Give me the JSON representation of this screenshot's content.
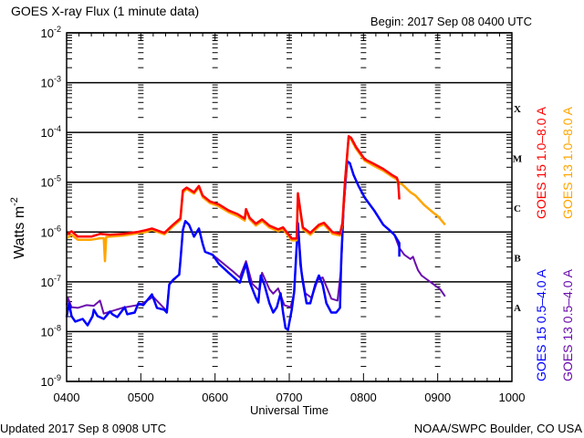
{
  "chart_data": {
    "type": "line",
    "title": "GOES X-ray Flux (1 minute data)",
    "subtitle": "Begin: 2017 Sep 08 0400 UTC",
    "xlabel": "Universal Time",
    "ylabel": "Watts m",
    "ylabel_exp": "-2",
    "y_scale": "log",
    "ylim": [
      1e-09,
      0.01
    ],
    "xlim": [
      "0400",
      "1000"
    ],
    "grid": "horizontal lines at each decade",
    "x_ticks": [
      "0400",
      "0500",
      "0600",
      "0700",
      "0800",
      "0900",
      "1000"
    ],
    "y_ticks": [
      {
        "base": "10",
        "exp": "-2"
      },
      {
        "base": "10",
        "exp": "-3"
      },
      {
        "base": "10",
        "exp": "-4"
      },
      {
        "base": "10",
        "exp": "-5"
      },
      {
        "base": "10",
        "exp": "-6"
      },
      {
        "base": "10",
        "exp": "-7"
      },
      {
        "base": "10",
        "exp": "-8"
      },
      {
        "base": "10",
        "exp": "-9"
      }
    ],
    "flare_classes": [
      "X",
      "M",
      "C",
      "B",
      "A"
    ],
    "legend_placement": "right, vertical",
    "series": [
      {
        "name": "GOES 13 0.5-4.0 A",
        "color": "#6a0dad",
        "points": [
          [
            "0400",
            3.4e-08
          ],
          [
            "0401",
            4.8e-08
          ],
          [
            "0404",
            3.1e-08
          ],
          [
            "0409",
            3e-08
          ],
          [
            "0416",
            3.4e-08
          ],
          [
            "0422",
            3.3e-08
          ],
          [
            "0427",
            4.2e-08
          ],
          [
            "0430",
            2.3e-08
          ],
          [
            "0445",
            3e-08
          ],
          [
            "0500",
            3.5e-08
          ],
          [
            "0510",
            5e-08
          ],
          [
            "0521",
            2.6e-08
          ],
          [
            "0523",
            9e-08
          ],
          [
            "0531",
            1.4e-07
          ],
          [
            "0534",
            1.09e-06
          ],
          [
            "0536",
            1.66e-06
          ],
          [
            "0539",
            1.4e-06
          ],
          [
            "0543",
            8.1e-07
          ],
          [
            "0547",
            1.18e-06
          ],
          [
            "0550",
            5.8e-07
          ],
          [
            "0552",
            4e-07
          ],
          [
            "0558",
            3.5e-07
          ],
          [
            "0614",
            1.66e-07
          ],
          [
            "0620",
            1.23e-07
          ],
          [
            "0625",
            2.6e-07
          ],
          [
            "0630",
            9.2e-08
          ],
          [
            "0636",
            6.6e-08
          ],
          [
            "0638",
            1.52e-07
          ],
          [
            "0644",
            7.1e-08
          ],
          [
            "0647",
            5.8e-08
          ],
          [
            "0651",
            7.4e-08
          ],
          [
            "0656",
            3.4e-08
          ],
          [
            "0701",
            3.1e-08
          ],
          [
            "0704",
            5.9e-08
          ],
          [
            "0707",
            1.52e-06
          ],
          [
            "0710",
            1.52e-07
          ],
          [
            "0713",
            5.9e-08
          ],
          [
            "0718",
            4.8e-08
          ],
          [
            "0723",
            1.09e-07
          ],
          [
            "0727",
            1.23e-07
          ],
          [
            "0730",
            8.1e-08
          ],
          [
            "0734",
            4.6e-08
          ],
          [
            "0739",
            4.2e-08
          ],
          [
            "0742",
            1.88e-07
          ],
          [
            "0744",
            3.26e-06
          ],
          [
            "0747",
            2.64e-05
          ],
          [
            "0749",
            2.42e-05
          ],
          [
            "0752",
            1.4e-05
          ],
          [
            "0756",
            8.4e-06
          ],
          [
            "0801",
            4.9e-06
          ],
          [
            "0809",
            2.64e-06
          ],
          [
            "0816",
            1.4e-06
          ],
          [
            "0821",
            1.09e-06
          ],
          [
            "0825",
            8.8e-07
          ],
          [
            "0829",
            4.8e-07
          ],
          [
            "0833",
            3.5e-07
          ],
          [
            "0838",
            2.87e-07
          ],
          [
            "0840",
            3.2e-07
          ],
          [
            "0842",
            2.32e-07
          ],
          [
            "0844",
            1.73e-07
          ],
          [
            "0847",
            1.34e-07
          ],
          [
            "0851",
            1.13e-07
          ],
          [
            "0857",
            8.8e-08
          ],
          [
            "0902",
            7.1e-08
          ],
          [
            "0906",
            5.1e-08
          ]
        ]
      },
      {
        "name": "GOES 15 0.5-4.0 A",
        "color": "#0000ff",
        "points": [
          [
            "0400",
            1.96e-08
          ],
          [
            "0402",
            3.7e-08
          ],
          [
            "0404",
            2.05e-08
          ],
          [
            "0407",
            1.59e-08
          ],
          [
            "0413",
            1.8e-08
          ],
          [
            "0417",
            1.34e-08
          ],
          [
            "0421",
            2.05e-08
          ],
          [
            "0422",
            2.75e-08
          ],
          [
            "0425",
            2.05e-08
          ],
          [
            "0430",
            1.8e-08
          ],
          [
            "0435",
            2.53e-08
          ],
          [
            "0437",
            2.23e-08
          ],
          [
            "0441",
            1.96e-08
          ],
          [
            "0447",
            3.1e-08
          ],
          [
            "0449",
            2.23e-08
          ],
          [
            "0455",
            2.42e-08
          ],
          [
            "0458",
            3.7e-08
          ],
          [
            "0502",
            3.4e-08
          ],
          [
            "0509",
            5.6e-08
          ],
          [
            "0513",
            3e-08
          ],
          [
            "0519",
            2.75e-08
          ],
          [
            "0521",
            2.42e-08
          ],
          [
            "0523",
            8.8e-08
          ],
          [
            "0526",
            1.09e-07
          ],
          [
            "0531",
            1.4e-07
          ],
          [
            "0532",
            2.6e-07
          ],
          [
            "0534",
            1.09e-06
          ],
          [
            "0536",
            1.66e-06
          ],
          [
            "0539",
            1.4e-06
          ],
          [
            "0543",
            8.1e-07
          ],
          [
            "0547",
            1.18e-06
          ],
          [
            "0550",
            5.8e-07
          ],
          [
            "0552",
            4e-07
          ],
          [
            "0558",
            3.5e-07
          ],
          [
            "0603",
            2.32e-07
          ],
          [
            "0611",
            1.52e-07
          ],
          [
            "0620",
            9.6e-08
          ],
          [
            "0625",
            2.32e-07
          ],
          [
            "0628",
            1e-07
          ],
          [
            "0633",
            4.8e-08
          ],
          [
            "0635",
            3.85e-08
          ],
          [
            "0637",
            1.34e-07
          ],
          [
            "0640",
            8.6e-08
          ],
          [
            "0644",
            3.7e-08
          ],
          [
            "0647",
            2.42e-08
          ],
          [
            "0650",
            3.1e-08
          ],
          [
            "0653",
            5.9e-08
          ],
          [
            "0655",
            2.42e-08
          ],
          [
            "0657",
            1.18e-08
          ],
          [
            "0659",
            1.09e-08
          ],
          [
            "0702",
            2.75e-08
          ],
          [
            "0704",
            6.4e-08
          ],
          [
            "0707",
            1.52e-06
          ],
          [
            "0709",
            2.32e-07
          ],
          [
            "0711",
            1e-07
          ],
          [
            "0714",
            3.7e-08
          ],
          [
            "0717",
            3.7e-08
          ],
          [
            "0721",
            8.8e-08
          ],
          [
            "0724",
            1.34e-07
          ],
          [
            "0727",
            8.8e-08
          ],
          [
            "0730",
            3.7e-08
          ],
          [
            "0734",
            2.42e-08
          ],
          [
            "0738",
            2.42e-08
          ],
          [
            "0741",
            3e-08
          ],
          [
            "0742",
            2.6e-07
          ],
          [
            "0744",
            3.26e-06
          ],
          [
            "0746",
            1.59e-05
          ],
          [
            "0747",
            2.64e-05
          ],
          [
            "0749",
            2.42e-05
          ],
          [
            "0752",
            1.4e-05
          ],
          [
            "0756",
            8.4e-06
          ],
          [
            "0801",
            4.9e-06
          ],
          [
            "0809",
            2.64e-06
          ],
          [
            "0816",
            1.4e-06
          ],
          [
            "0821",
            1.09e-06
          ],
          [
            "0825",
            8.8e-07
          ],
          [
            "0829",
            6e-07
          ],
          [
            "0829",
            3.2e-07
          ]
        ]
      },
      {
        "name": "GOES 13 1.0-8.0 A",
        "color": "#ffa500",
        "points": [
          [
            "0400",
            7.5e-07
          ],
          [
            "0404",
            8.8e-07
          ],
          [
            "0409",
            7e-07
          ],
          [
            "0420",
            7e-07
          ],
          [
            "0427",
            7.5e-07
          ],
          [
            "0430",
            7.5e-07
          ],
          [
            "0431",
            2.6e-07
          ],
          [
            "0432",
            8e-07
          ],
          [
            "0446",
            8.5e-07
          ],
          [
            "0457",
            9.4e-07
          ],
          [
            "0504",
            1e-06
          ],
          [
            "0509",
            1.1e-06
          ],
          [
            "0519",
            9e-07
          ],
          [
            "0526",
            1.3e-06
          ],
          [
            "0532",
            1.75e-06
          ],
          [
            "0534",
            6.2e-06
          ],
          [
            "0537",
            7.3e-06
          ],
          [
            "0543",
            5.9e-06
          ],
          [
            "0547",
            7.9e-06
          ],
          [
            "0550",
            5e-06
          ],
          [
            "0556",
            3.8e-06
          ],
          [
            "0603",
            3.3e-06
          ],
          [
            "0611",
            2.5e-06
          ],
          [
            "0618",
            2.1e-06
          ],
          [
            "0624",
            1.7e-06
          ],
          [
            "0625",
            2.7e-06
          ],
          [
            "0628",
            1.8e-06
          ],
          [
            "0633",
            1.35e-06
          ],
          [
            "0638",
            1.66e-06
          ],
          [
            "0644",
            1.23e-06
          ],
          [
            "0651",
            1.04e-06
          ],
          [
            "0655",
            1.14e-06
          ],
          [
            "0702",
            6.8e-07
          ],
          [
            "0706",
            6.8e-07
          ],
          [
            "0707",
            5.6e-06
          ],
          [
            "0709",
            2.5e-06
          ],
          [
            "0711",
            1.14e-06
          ],
          [
            "0717",
            8.8e-07
          ],
          [
            "0724",
            1.3e-06
          ],
          [
            "0728",
            1.42e-06
          ],
          [
            "0735",
            9.2e-07
          ],
          [
            "0741",
            8.5e-07
          ],
          [
            "0743",
            1.42e-06
          ],
          [
            "0745",
            9.4e-06
          ],
          [
            "0748",
            7.8e-05
          ],
          [
            "0750",
            7.2e-05
          ],
          [
            "0754",
            4.7e-05
          ],
          [
            "0801",
            2.7e-05
          ],
          [
            "0809",
            2.1e-05
          ],
          [
            "0816",
            1.7e-05
          ],
          [
            "0823",
            1.3e-05
          ],
          [
            "0827",
            1.14e-05
          ],
          [
            "0828",
            9.6e-06
          ],
          [
            "0831",
            9.2e-06
          ],
          [
            "0838",
            6.3e-06
          ],
          [
            "0842",
            5.4e-06
          ],
          [
            "0849",
            3.5e-06
          ],
          [
            "0856",
            2.5e-06
          ],
          [
            "0900",
            2.1e-06
          ],
          [
            "0906",
            1.4e-06
          ]
        ]
      },
      {
        "name": "GOES 15 1.0-8.0 A",
        "color": "#ff0000",
        "points": [
          [
            "0400",
            8.8e-07
          ],
          [
            "0404",
            1.04e-06
          ],
          [
            "0409",
            8.1e-07
          ],
          [
            "0420",
            8.1e-07
          ],
          [
            "0427",
            9.2e-07
          ],
          [
            "0435",
            8.8e-07
          ],
          [
            "0446",
            9.2e-07
          ],
          [
            "0457",
            1e-06
          ],
          [
            "0504",
            1.09e-06
          ],
          [
            "0509",
            1.18e-06
          ],
          [
            "0519",
            9.6e-07
          ],
          [
            "0526",
            1.4e-06
          ],
          [
            "0532",
            1.88e-06
          ],
          [
            "0534",
            6.8e-06
          ],
          [
            "0537",
            7.8e-06
          ],
          [
            "0543",
            6.3e-06
          ],
          [
            "0547",
            8.4e-06
          ],
          [
            "0550",
            5.4e-06
          ],
          [
            "0556",
            4.1e-06
          ],
          [
            "0603",
            3.6e-06
          ],
          [
            "0611",
            2.7e-06
          ],
          [
            "0618",
            2.3e-06
          ],
          [
            "0624",
            1.86e-06
          ],
          [
            "0625",
            2.9e-06
          ],
          [
            "0628",
            1.94e-06
          ],
          [
            "0633",
            1.47e-06
          ],
          [
            "0638",
            1.8e-06
          ],
          [
            "0644",
            1.34e-06
          ],
          [
            "0651",
            1.13e-06
          ],
          [
            "0655",
            1.24e-06
          ],
          [
            "0702",
            7.4e-07
          ],
          [
            "0706",
            7.4e-07
          ],
          [
            "0707",
            6e-06
          ],
          [
            "0709",
            2.7e-06
          ],
          [
            "0711",
            1.24e-06
          ],
          [
            "0717",
            9.6e-07
          ],
          [
            "0724",
            1.4e-06
          ],
          [
            "0728",
            1.54e-06
          ],
          [
            "0735",
            1e-06
          ],
          [
            "0741",
            9.2e-07
          ],
          [
            "0743",
            1.54e-06
          ],
          [
            "0745",
            1e-05
          ],
          [
            "0748",
            8.4e-05
          ],
          [
            "0750",
            7.8e-05
          ],
          [
            "0754",
            5.1e-05
          ],
          [
            "0801",
            2.9e-05
          ],
          [
            "0809",
            2.3e-05
          ],
          [
            "0816",
            1.85e-05
          ],
          [
            "0823",
            1.4e-05
          ],
          [
            "0827",
            1.23e-05
          ],
          [
            "0828",
            1.04e-05
          ],
          [
            "0829",
            4.5e-06
          ]
        ]
      }
    ]
  },
  "legend": {
    "long": [
      {
        "label": "GOES 15 1.0–8.0 A",
        "color": "#ff0000"
      },
      {
        "label": "GOES 13 1.0–8.0 A",
        "color": "#ffa500"
      }
    ],
    "short": [
      {
        "label": "GOES 15 0.5–4.0 A",
        "color": "#0000ff"
      },
      {
        "label": "GOES 13 0.5–4.0 A",
        "color": "#6a0dad"
      }
    ]
  },
  "footer": {
    "updated": "Updated 2017 Sep  8 0908 UTC",
    "credit": "NOAA/SWPC Boulder, CO USA"
  }
}
